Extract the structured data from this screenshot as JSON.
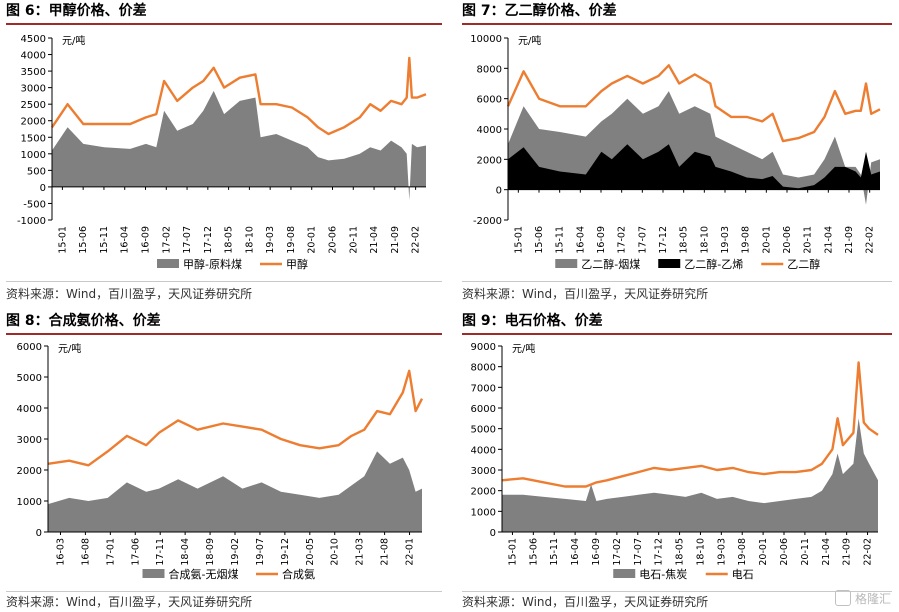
{
  "watermark": "格隆汇",
  "chart_data": [
    {
      "type": "area",
      "title": "图 6：甲醇价格、价差",
      "source": "资料来源：Wind，百川盈孚，天风证券研究所",
      "unit": "元/吨",
      "ylim": [
        -1000,
        4500
      ],
      "yticks": [
        "4500",
        "4000",
        "3500",
        "3000",
        "2500",
        "2000",
        "1500",
        "1000",
        "500",
        "0",
        "-500",
        "-1000"
      ],
      "x_start": 2015.0,
      "x_end": 2022.17,
      "xticks": [
        "15-01",
        "15-06",
        "15-11",
        "16-04",
        "16-09",
        "17-02",
        "17-07",
        "17-12",
        "18-05",
        "18-10",
        "19-03",
        "19-08",
        "20-01",
        "20-06",
        "20-11",
        "21-04",
        "21-09",
        "22-02"
      ],
      "series": [
        {
          "name": "甲醇-原料煤",
          "kind": "area",
          "color": "#808080",
          "t": [
            2015.0,
            2015.3,
            2015.6,
            2016.0,
            2016.5,
            2016.8,
            2017.0,
            2017.15,
            2017.4,
            2017.7,
            2017.9,
            2018.1,
            2018.3,
            2018.6,
            2018.9,
            2019.0,
            2019.3,
            2019.6,
            2019.9,
            2020.1,
            2020.3,
            2020.6,
            2020.9,
            2021.1,
            2021.3,
            2021.5,
            2021.7,
            2021.8,
            2021.85,
            2021.9,
            2022.0,
            2022.17
          ],
          "y": [
            1100,
            1800,
            1300,
            1200,
            1150,
            1300,
            1200,
            2300,
            1700,
            1900,
            2300,
            2900,
            2200,
            2600,
            2700,
            1500,
            1600,
            1400,
            1200,
            900,
            800,
            850,
            1000,
            1200,
            1100,
            1400,
            1200,
            1000,
            -400,
            1300,
            1200,
            1250
          ]
        },
        {
          "name": "甲醇",
          "kind": "line",
          "color": "#ed7d31",
          "t": [
            2015.0,
            2015.3,
            2015.6,
            2016.0,
            2016.5,
            2016.8,
            2017.0,
            2017.15,
            2017.4,
            2017.7,
            2017.9,
            2018.1,
            2018.3,
            2018.6,
            2018.9,
            2019.0,
            2019.3,
            2019.6,
            2019.9,
            2020.1,
            2020.3,
            2020.6,
            2020.9,
            2021.1,
            2021.3,
            2021.5,
            2021.7,
            2021.8,
            2021.85,
            2021.9,
            2022.0,
            2022.17
          ],
          "y": [
            1800,
            2500,
            1900,
            1900,
            1900,
            2100,
            2200,
            3200,
            2600,
            3000,
            3200,
            3600,
            3000,
            3300,
            3400,
            2500,
            2500,
            2400,
            2100,
            1800,
            1600,
            1800,
            2100,
            2500,
            2300,
            2600,
            2500,
            2700,
            3900,
            2700,
            2700,
            2800
          ]
        }
      ]
    },
    {
      "type": "area",
      "title": "图 7：乙二醇价格、价差",
      "source": "资料来源：Wind，百川盈孚，天风证券研究所",
      "unit": "元/吨",
      "ylim": [
        -2000,
        10000
      ],
      "yticks": [
        "10000",
        "8000",
        "6000",
        "4000",
        "2000",
        "0",
        "-2000"
      ],
      "x_start": 2015.0,
      "x_end": 2022.17,
      "xticks": [
        "15-01",
        "15-06",
        "15-11",
        "16-04",
        "16-09",
        "17-02",
        "17-07",
        "17-12",
        "18-05",
        "18-10",
        "19-03",
        "19-08",
        "20-01",
        "20-06",
        "20-11",
        "21-04",
        "21-09",
        "22-02"
      ],
      "series": [
        {
          "name": "乙二醇-烟煤",
          "kind": "area",
          "color": "#808080",
          "t": [
            2015.0,
            2015.3,
            2015.6,
            2016.0,
            2016.5,
            2016.8,
            2017.0,
            2017.3,
            2017.6,
            2017.9,
            2018.1,
            2018.3,
            2018.6,
            2018.9,
            2019.0,
            2019.3,
            2019.6,
            2019.9,
            2020.1,
            2020.3,
            2020.6,
            2020.9,
            2021.1,
            2021.3,
            2021.5,
            2021.7,
            2021.8,
            2021.9,
            2022.0,
            2022.17
          ],
          "y": [
            3000,
            5500,
            4000,
            3800,
            3500,
            4500,
            5000,
            6000,
            5000,
            5500,
            6500,
            5000,
            5500,
            5000,
            3500,
            3000,
            2500,
            2000,
            2500,
            1000,
            800,
            1000,
            2000,
            3500,
            1500,
            1500,
            1000,
            -1000,
            1800,
            2000
          ]
        },
        {
          "name": "乙二醇-乙烯",
          "kind": "area",
          "color": "#000000",
          "t": [
            2015.0,
            2015.3,
            2015.6,
            2016.0,
            2016.5,
            2016.8,
            2017.0,
            2017.3,
            2017.6,
            2017.9,
            2018.1,
            2018.3,
            2018.6,
            2018.9,
            2019.0,
            2019.3,
            2019.6,
            2019.9,
            2020.1,
            2020.3,
            2020.6,
            2020.9,
            2021.1,
            2021.3,
            2021.5,
            2021.7,
            2021.8,
            2021.9,
            2022.0,
            2022.17
          ],
          "y": [
            2000,
            2800,
            1500,
            1200,
            1000,
            2500,
            2000,
            3000,
            2000,
            2500,
            3000,
            1500,
            2500,
            2200,
            1500,
            1200,
            800,
            700,
            900,
            200,
            100,
            300,
            800,
            1500,
            1500,
            1200,
            800,
            2500,
            1000,
            1200
          ]
        },
        {
          "name": "乙二醇",
          "kind": "line",
          "color": "#ed7d31",
          "t": [
            2015.0,
            2015.3,
            2015.6,
            2016.0,
            2016.5,
            2016.8,
            2017.0,
            2017.3,
            2017.6,
            2017.9,
            2018.1,
            2018.3,
            2018.6,
            2018.9,
            2019.0,
            2019.3,
            2019.6,
            2019.9,
            2020.1,
            2020.3,
            2020.6,
            2020.9,
            2021.1,
            2021.3,
            2021.5,
            2021.7,
            2021.8,
            2021.9,
            2022.0,
            2022.17
          ],
          "y": [
            5500,
            7800,
            6000,
            5500,
            5500,
            6500,
            7000,
            7500,
            7000,
            7500,
            8200,
            7000,
            7600,
            7000,
            5500,
            4800,
            4800,
            4500,
            5000,
            3200,
            3400,
            3800,
            4800,
            6500,
            5000,
            5200,
            5200,
            7000,
            5000,
            5300
          ]
        }
      ]
    },
    {
      "type": "area",
      "title": "图 8：合成氨价格、价差",
      "source": "资料来源：Wind，百川盈孚，天风证券研究所",
      "unit": "元/吨",
      "ylim": [
        0,
        6000
      ],
      "yticks": [
        "6000",
        "5000",
        "4000",
        "3000",
        "2000",
        "1000",
        "0"
      ],
      "x_start": 2016.17,
      "x_end": 2022.0,
      "xticks": [
        "16-03",
        "16-08",
        "17-01",
        "17-06",
        "17-11",
        "18-04",
        "18-09",
        "19-02",
        "19-07",
        "19-12",
        "20-05",
        "20-10",
        "21-03",
        "21-08",
        "22-01"
      ],
      "series": [
        {
          "name": "合成氨-无烟煤",
          "kind": "area",
          "color": "#808080",
          "t": [
            2016.17,
            2016.5,
            2016.8,
            2017.1,
            2017.4,
            2017.7,
            2017.9,
            2018.2,
            2018.5,
            2018.9,
            2019.2,
            2019.5,
            2019.8,
            2020.1,
            2020.4,
            2020.7,
            2020.9,
            2021.1,
            2021.3,
            2021.5,
            2021.7,
            2021.8,
            2021.9,
            2022.0
          ],
          "y": [
            900,
            1100,
            1000,
            1100,
            1600,
            1300,
            1400,
            1700,
            1400,
            1800,
            1400,
            1600,
            1300,
            1200,
            1100,
            1200,
            1500,
            1800,
            2600,
            2200,
            2400,
            2000,
            1300,
            1400
          ]
        },
        {
          "name": "合成氨",
          "kind": "line",
          "color": "#ed7d31",
          "t": [
            2016.17,
            2016.5,
            2016.8,
            2017.1,
            2017.4,
            2017.7,
            2017.9,
            2018.2,
            2018.5,
            2018.9,
            2019.2,
            2019.5,
            2019.8,
            2020.1,
            2020.4,
            2020.7,
            2020.9,
            2021.1,
            2021.3,
            2021.5,
            2021.7,
            2021.8,
            2021.9,
            2022.0
          ],
          "y": [
            2200,
            2300,
            2150,
            2600,
            3100,
            2800,
            3200,
            3600,
            3300,
            3500,
            3400,
            3300,
            3000,
            2800,
            2700,
            2800,
            3100,
            3300,
            3900,
            3800,
            4500,
            5200,
            3900,
            4300
          ]
        }
      ]
    },
    {
      "type": "area",
      "title": "图 9：电石价格、价差",
      "source": "资料来源：Wind，百川盈孚，天风证券研究所",
      "unit": "元/吨",
      "ylim": [
        0,
        9000
      ],
      "yticks": [
        "9000",
        "8000",
        "7000",
        "6000",
        "5000",
        "4000",
        "3000",
        "2000",
        "1000",
        "0"
      ],
      "x_start": 2015.0,
      "x_end": 2022.17,
      "xticks": [
        "15-01",
        "15-06",
        "15-11",
        "16-04",
        "16-09",
        "17-02",
        "17-07",
        "17-12",
        "18-05",
        "18-10",
        "19-03",
        "19-08",
        "20-01",
        "20-06",
        "20-11",
        "21-04",
        "21-09",
        "22-02"
      ],
      "series": [
        {
          "name": "电石-焦炭",
          "kind": "area",
          "color": "#808080",
          "t": [
            2015.0,
            2015.4,
            2015.8,
            2016.2,
            2016.6,
            2016.7,
            2016.8,
            2017.0,
            2017.3,
            2017.6,
            2017.9,
            2018.2,
            2018.5,
            2018.8,
            2019.1,
            2019.4,
            2019.7,
            2020.0,
            2020.3,
            2020.6,
            2020.9,
            2021.1,
            2021.3,
            2021.4,
            2021.5,
            2021.7,
            2021.8,
            2021.9,
            2022.0,
            2022.17
          ],
          "y": [
            1800,
            1800,
            1700,
            1600,
            1500,
            2300,
            1500,
            1600,
            1700,
            1800,
            1900,
            1800,
            1700,
            1900,
            1600,
            1700,
            1500,
            1400,
            1500,
            1600,
            1700,
            2000,
            2800,
            3800,
            2800,
            3300,
            5500,
            3800,
            3300,
            2500
          ]
        },
        {
          "name": "电石",
          "kind": "line",
          "color": "#ed7d31",
          "t": [
            2015.0,
            2015.4,
            2015.8,
            2016.2,
            2016.6,
            2016.7,
            2016.8,
            2017.0,
            2017.3,
            2017.6,
            2017.9,
            2018.2,
            2018.5,
            2018.8,
            2019.1,
            2019.4,
            2019.7,
            2020.0,
            2020.3,
            2020.6,
            2020.9,
            2021.1,
            2021.3,
            2021.4,
            2021.5,
            2021.7,
            2021.8,
            2021.9,
            2022.0,
            2022.17
          ],
          "y": [
            2500,
            2600,
            2400,
            2200,
            2200,
            2300,
            2400,
            2500,
            2700,
            2900,
            3100,
            3000,
            3100,
            3200,
            3000,
            3100,
            2900,
            2800,
            2900,
            2900,
            3000,
            3300,
            4000,
            5500,
            4200,
            4800,
            8200,
            5300,
            5000,
            4700
          ]
        }
      ]
    }
  ]
}
